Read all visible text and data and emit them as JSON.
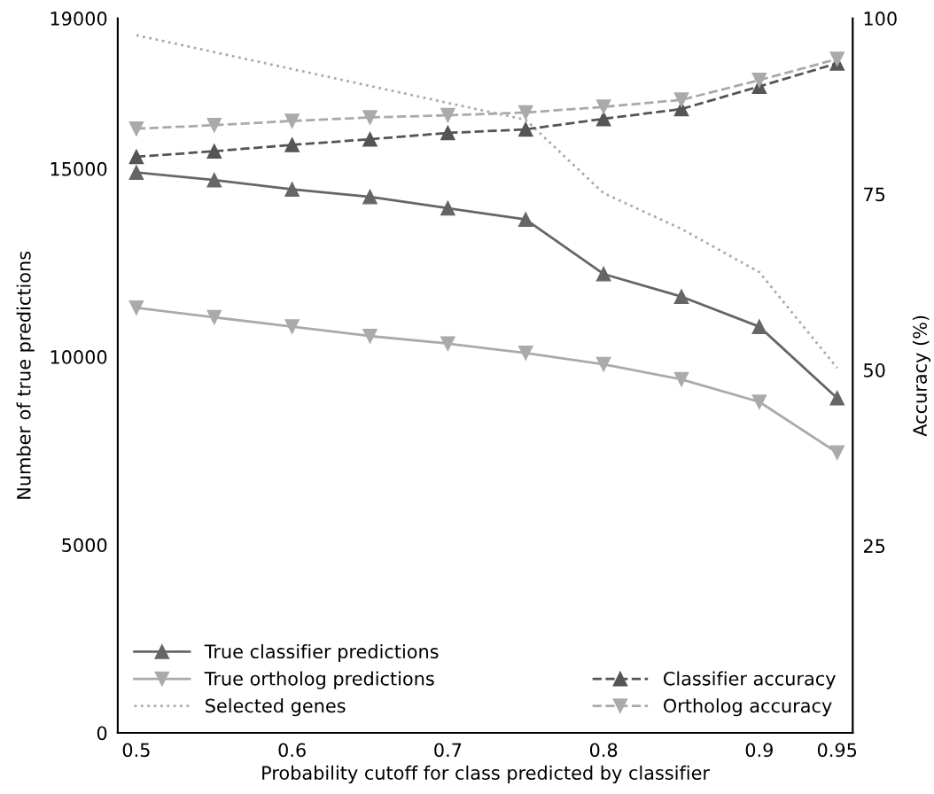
{
  "chart_data": {
    "type": "line",
    "xlabel": "Probability cutoff for class predicted by classifier",
    "ylabel": "Number of true predictions",
    "y2label": "Accuracy (%)",
    "x": [
      0.5,
      0.55,
      0.6,
      0.65,
      0.7,
      0.75,
      0.8,
      0.85,
      0.9,
      0.95
    ],
    "series": [
      {
        "name": "True classifier predictions",
        "color": "#666666",
        "marker": "triangle",
        "line_style": "solid",
        "values": [
          14900,
          14700,
          14450,
          14250,
          13950,
          13650,
          12200,
          11600,
          10800,
          8900
        ]
      },
      {
        "name": "True ortholog predictions",
        "color": "#aaaaaa",
        "marker": "triangle_down",
        "line_style": "solid",
        "values": [
          11300,
          11050,
          10800,
          10550,
          10350,
          10100,
          9800,
          9400,
          8800,
          7450
        ]
      },
      {
        "name": "Selected genes",
        "color": "#aaaaaa",
        "marker": "none",
        "line_style": "dotted",
        "values": [
          18550,
          18100,
          17650,
          17200,
          16750,
          16300,
          14350,
          13400,
          12250,
          9700
        ]
      },
      {
        "name": "Classifier accuracy",
        "color": "#555555",
        "marker": "triangle",
        "line_style": "dashed",
        "axis": "y2",
        "values": [
          80.3,
          81.1,
          82.0,
          82.8,
          83.7,
          84.2,
          85.7,
          87.1,
          90.3,
          93.6
        ]
      },
      {
        "name": "Ortholog accuracy",
        "color": "#aaaaaa",
        "marker": "triangle_down",
        "line_style": "dashed",
        "axis": "y2",
        "values": [
          84.3,
          84.8,
          85.4,
          85.9,
          86.2,
          86.6,
          87.4,
          88.4,
          91.2,
          94.2
        ]
      }
    ],
    "xlim": [
      0.488,
      0.96
    ],
    "xticks": [
      0.5,
      0.6,
      0.7,
      0.8,
      0.9,
      0.95
    ],
    "ylim": [
      0,
      19000
    ],
    "yticks": [
      0,
      5000,
      10000,
      15000,
      19000
    ],
    "y2lim": [
      -1.6,
      100
    ],
    "y2ticks": [
      25,
      50,
      75,
      100
    ],
    "grid": false,
    "legend": "bottom"
  }
}
